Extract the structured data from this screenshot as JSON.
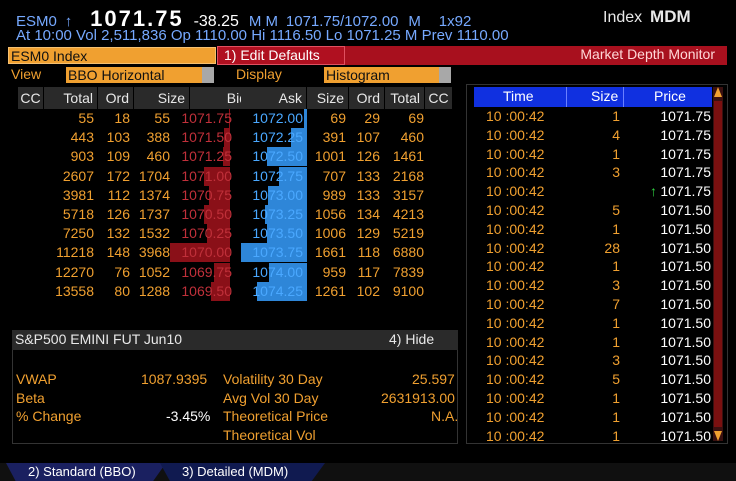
{
  "header": {
    "symbol": "ESM0",
    "arrow": "↑",
    "last": "1071.75",
    "change": "-38.25",
    "flags": "M M",
    "bid_ask": "1071.75/1072.00",
    "flag2": "M",
    "size": "1x92",
    "market": "Index",
    "function": "MDM",
    "line2": "At 10:00 Vol 2,511,836 Op 1110.00    Hi 1116.50    Lo 1071.25 M Prev 1110.00"
  },
  "bar": {
    "security": "ESM0 Index",
    "edit_defaults": "1)  Edit Defaults",
    "title": "Market Depth Monitor"
  },
  "view_row": {
    "view_label": "View",
    "view_value": "BBO Horizontal",
    "display_label": "Display",
    "display_value": "Histogram"
  },
  "depth": {
    "bid_headers": [
      "CC",
      "Total",
      "Ord",
      "Size",
      "Bid"
    ],
    "ask_headers": [
      "Ask",
      "Size",
      "Ord",
      "Total",
      "CC"
    ],
    "rows": [
      {
        "total_b": "55",
        "ord_b": "18",
        "size_b": "55",
        "bid": "1071.75",
        "ask": "1072.00",
        "size_a": "69",
        "ord_a": "29",
        "total_a": "69"
      },
      {
        "total_b": "443",
        "ord_b": "103",
        "size_b": "388",
        "bid": "1071.50",
        "ask": "1072.25",
        "size_a": "391",
        "ord_a": "107",
        "total_a": "460"
      },
      {
        "total_b": "903",
        "ord_b": "109",
        "size_b": "460",
        "bid": "1071.25",
        "ask": "1072.50",
        "size_a": "1001",
        "ord_a": "126",
        "total_a": "1461"
      },
      {
        "total_b": "2607",
        "ord_b": "172",
        "size_b": "1704",
        "bid": "1071.00",
        "ask": "1072.75",
        "size_a": "707",
        "ord_a": "133",
        "total_a": "2168"
      },
      {
        "total_b": "3981",
        "ord_b": "112",
        "size_b": "1374",
        "bid": "1070.75",
        "ask": "1073.00",
        "size_a": "989",
        "ord_a": "133",
        "total_a": "3157"
      },
      {
        "total_b": "5718",
        "ord_b": "126",
        "size_b": "1737",
        "bid": "1070.50",
        "ask": "1073.25",
        "size_a": "1056",
        "ord_a": "134",
        "total_a": "4213"
      },
      {
        "total_b": "7250",
        "ord_b": "132",
        "size_b": "1532",
        "bid": "1070.25",
        "ask": "1073.50",
        "size_a": "1006",
        "ord_a": "129",
        "total_a": "5219"
      },
      {
        "total_b": "11218",
        "ord_b": "148",
        "size_b": "3968",
        "bid": "1070.00",
        "ask": "1073.75",
        "size_a": "1661",
        "ord_a": "118",
        "total_a": "6880"
      },
      {
        "total_b": "12270",
        "ord_b": "76",
        "size_b": "1052",
        "bid": "1069.75",
        "ask": "1074.00",
        "size_a": "959",
        "ord_a": "117",
        "total_a": "7839"
      },
      {
        "total_b": "13558",
        "ord_b": "80",
        "size_b": "1288",
        "bid": "1069.50",
        "ask": "1074.25",
        "size_a": "1261",
        "ord_a": "102",
        "total_a": "9100"
      }
    ]
  },
  "info": {
    "title": "S&P500 EMINI FUT  Jun10",
    "hide": "4)  Hide",
    "vwap_label": "VWAP",
    "vwap": "1087.9395",
    "beta_label": "Beta",
    "beta": "",
    "pct_label": "% Change",
    "pct": "-3.45%",
    "vol30_label": "Volatility 30 Day",
    "vol30": "25.597",
    "avgvol_label": "Avg Vol 30 Day",
    "avgvol": "2631913.00",
    "theo_price_label": "Theoretical Price",
    "theo_price": "N.A.",
    "theo_vol_label": "Theoretical Vol",
    "theo_vol": ""
  },
  "trades": {
    "headers": [
      "Time",
      "Size",
      "Price"
    ],
    "rows": [
      {
        "time": "10 :00:42",
        "size": "1",
        "price": "1071.75",
        "uptick": false
      },
      {
        "time": "10 :00:42",
        "size": "4",
        "price": "1071.75",
        "uptick": false
      },
      {
        "time": "10 :00:42",
        "size": "1",
        "price": "1071.75",
        "uptick": false
      },
      {
        "time": "10 :00:42",
        "size": "3",
        "price": "1071.75",
        "uptick": false
      },
      {
        "time": "10 :00:42",
        "size": "",
        "price": "1071.75",
        "uptick": true
      },
      {
        "time": "10 :00:42",
        "size": "5",
        "price": "1071.50",
        "uptick": false
      },
      {
        "time": "10 :00:42",
        "size": "1",
        "price": "1071.50",
        "uptick": false
      },
      {
        "time": "10 :00:42",
        "size": "28",
        "price": "1071.50",
        "uptick": false
      },
      {
        "time": "10 :00:42",
        "size": "1",
        "price": "1071.50",
        "uptick": false
      },
      {
        "time": "10 :00:42",
        "size": "3",
        "price": "1071.50",
        "uptick": false
      },
      {
        "time": "10 :00:42",
        "size": "7",
        "price": "1071.50",
        "uptick": false
      },
      {
        "time": "10 :00:42",
        "size": "1",
        "price": "1071.50",
        "uptick": false
      },
      {
        "time": "10 :00:42",
        "size": "1",
        "price": "1071.50",
        "uptick": false
      },
      {
        "time": "10 :00:42",
        "size": "3",
        "price": "1071.50",
        "uptick": false
      },
      {
        "time": "10 :00:42",
        "size": "5",
        "price": "1071.50",
        "uptick": false
      },
      {
        "time": "10 :00:42",
        "size": "1",
        "price": "1071.50",
        "uptick": false
      },
      {
        "time": "10 :00:42",
        "size": "1",
        "price": "1071.50",
        "uptick": false
      },
      {
        "time": "10 :00:42",
        "size": "1",
        "price": "1071.50",
        "uptick": false
      }
    ]
  },
  "tabs": [
    "2)  Standard (BBO)",
    "3)  Detailed (MDM)"
  ],
  "colors": {
    "orange": "#f0a030",
    "bid_red": "#c0303a",
    "ask_blue": "#2e86d8",
    "header_blue": "#1030e0",
    "bar_red": "#a8101e"
  }
}
